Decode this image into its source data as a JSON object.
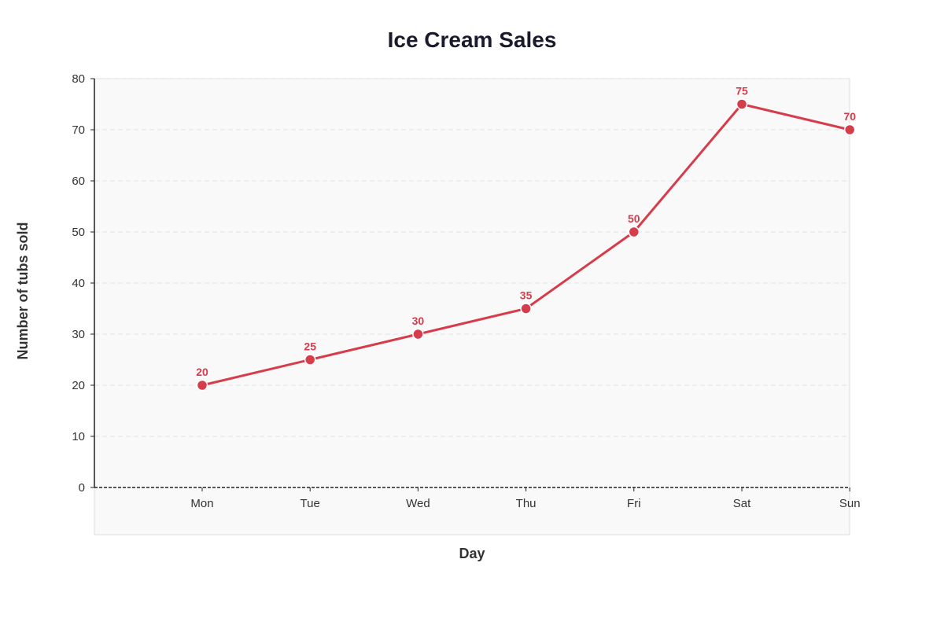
{
  "chart_data": {
    "type": "line",
    "title": "Ice Cream Sales",
    "xlabel": "Day",
    "ylabel": "Number of tubs sold",
    "categories": [
      "Mon",
      "Tue",
      "Wed",
      "Thu",
      "Fri",
      "Sat",
      "Sun"
    ],
    "series": [
      {
        "values": [
          20,
          25,
          30,
          35,
          50,
          75,
          70
        ]
      }
    ],
    "data_labels": [
      "20",
      "25",
      "30",
      "35",
      "50",
      "75",
      "70"
    ],
    "ylim": [
      0,
      80
    ],
    "yticks": [
      0,
      10,
      20,
      30,
      40,
      50,
      60,
      70,
      80
    ],
    "ytick_labels": [
      "0",
      "10",
      "20",
      "30",
      "40",
      "50",
      "60",
      "70",
      "80"
    ],
    "grid": true,
    "legend": "none",
    "colors": {
      "line": "#d63c4a",
      "plot_background": "#f9f9f9",
      "grid": "#e3e3e3",
      "axis": "#222222",
      "title": "#1a1a2e",
      "text": "#333333"
    }
  }
}
